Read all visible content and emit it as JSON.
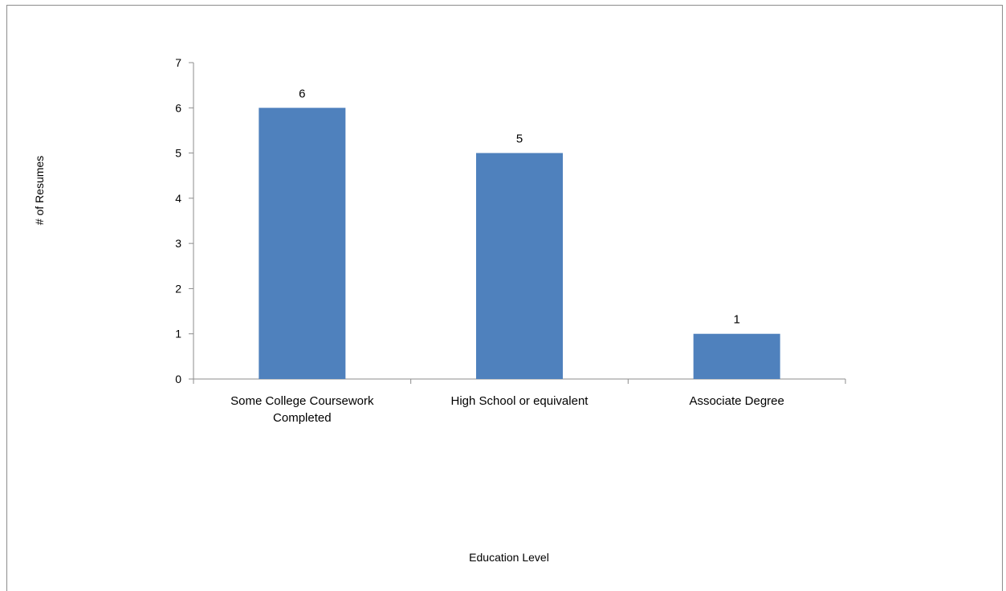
{
  "chart_data": {
    "type": "bar",
    "categories": [
      [
        "Some College Coursework",
        "Completed"
      ],
      [
        "High School or equivalent"
      ],
      [
        "Associate Degree"
      ]
    ],
    "values": [
      6,
      5,
      1
    ],
    "xlabel": "Education Level",
    "ylabel": "# of Resumes",
    "ylim": [
      0,
      7
    ],
    "yticks": [
      0,
      1,
      2,
      3,
      4,
      5,
      6,
      7
    ],
    "data_labels": [
      "6",
      "5",
      "1"
    ],
    "bar_color": "#4f81bd",
    "grid": false,
    "legend": "none"
  }
}
